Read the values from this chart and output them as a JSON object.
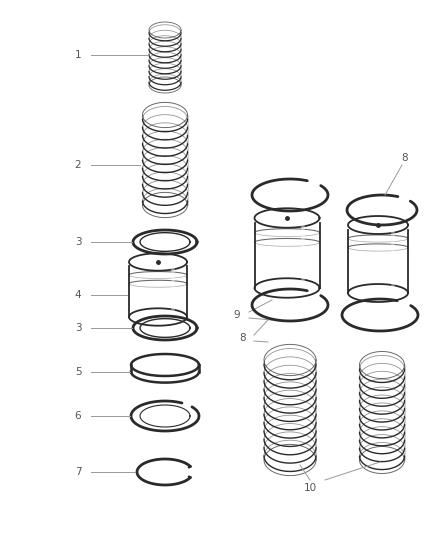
{
  "background_color": "#ffffff",
  "line_color": "#2a2a2a",
  "label_color": "#555555",
  "leader_color": "#999999",
  "fig_width": 4.38,
  "fig_height": 5.33,
  "dpi": 100
}
